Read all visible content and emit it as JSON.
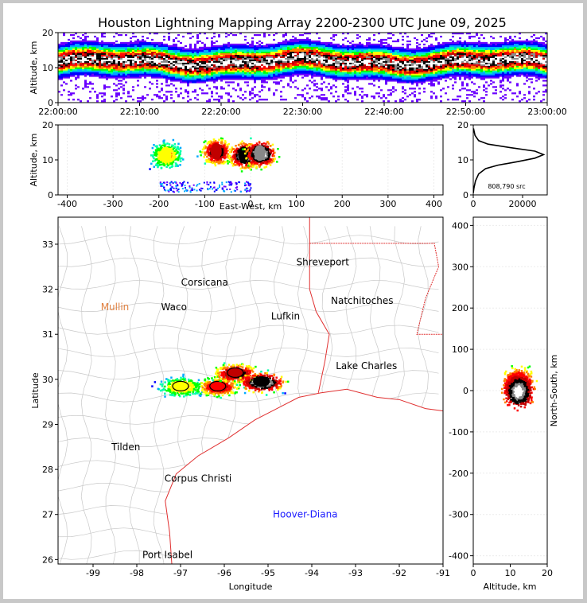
{
  "chart_data": {
    "type": "scatter",
    "title": "Houston Lightning Mapping Array 2200-2300 UTC June 09, 2025",
    "panels": {
      "time_altitude": {
        "ylabel": "Altitude, km",
        "ylim": [
          0,
          20
        ],
        "yticks": [
          "0",
          "10",
          "20"
        ],
        "xticks": [
          "22:00:00",
          "22:10:00",
          "22:20:00",
          "22:30:00",
          "22:40:00",
          "22:50:00",
          "23:00:00"
        ]
      },
      "east_west_altitude": {
        "xlabel": "East-West, km",
        "ylabel": "Altitude, km",
        "xlim": [
          -420,
          420
        ],
        "ylim": [
          0,
          20
        ],
        "xticks": [
          -400,
          -300,
          -200,
          -100,
          0,
          100,
          200,
          300,
          400
        ],
        "yticks": [
          0,
          10,
          20
        ],
        "cells": [
          {
            "ew": -185,
            "alt": 11.5,
            "intensity": 0.55
          },
          {
            "ew": -75,
            "alt": 12.5,
            "intensity": 0.85
          },
          {
            "ew": -15,
            "alt": 11.5,
            "intensity": 0.95
          },
          {
            "ew": 20,
            "alt": 12.0,
            "intensity": 1.0
          }
        ]
      },
      "altitude_histogram": {
        "xticks": [
          0,
          20000
        ],
        "yticks": [
          0,
          10,
          20
        ],
        "xlim": [
          0,
          30000
        ],
        "ylim": [
          0,
          20
        ],
        "source_count": "808,790 src",
        "profile": [
          {
            "alt": 0.5,
            "count": 0
          },
          {
            "alt": 2,
            "count": 300
          },
          {
            "alt": 4,
            "count": 900
          },
          {
            "alt": 6,
            "count": 2200
          },
          {
            "alt": 7.5,
            "count": 5000
          },
          {
            "alt": 8.5,
            "count": 10000
          },
          {
            "alt": 9.5,
            "count": 18000
          },
          {
            "alt": 10.5,
            "count": 25000
          },
          {
            "alt": 11.5,
            "count": 28500
          },
          {
            "alt": 12.5,
            "count": 25000
          },
          {
            "alt": 13.5,
            "count": 15000
          },
          {
            "alt": 14.5,
            "count": 6000
          },
          {
            "alt": 15.5,
            "count": 2200
          },
          {
            "alt": 17,
            "count": 700
          },
          {
            "alt": 19,
            "count": 100
          }
        ]
      },
      "plan_view": {
        "xlabel": "Longitude",
        "ylabel": "Latitude",
        "xlim": [
          -99.8,
          -91
        ],
        "ylim": [
          25.9,
          33.6
        ],
        "xticks": [
          -99,
          -98,
          -97,
          -96,
          -95,
          -94,
          -93,
          -92,
          -91
        ],
        "yticks": [
          26,
          27,
          28,
          29,
          30,
          31,
          32,
          33
        ],
        "places": [
          {
            "name": "Shreveport",
            "lon": -93.75,
            "lat": 32.6,
            "color": "#000000"
          },
          {
            "name": "Corsicana",
            "lon": -96.45,
            "lat": 32.15,
            "color": "#000000"
          },
          {
            "name": "Mullin",
            "lon": -98.5,
            "lat": 31.6,
            "color": "#e08040"
          },
          {
            "name": "Waco",
            "lon": -97.15,
            "lat": 31.6,
            "color": "#000000"
          },
          {
            "name": "Natchitoches",
            "lon": -92.85,
            "lat": 31.75,
            "color": "#000000"
          },
          {
            "name": "Lufkin",
            "lon": -94.6,
            "lat": 31.4,
            "color": "#000000"
          },
          {
            "name": "Lake Charles",
            "lon": -92.75,
            "lat": 30.3,
            "color": "#000000"
          },
          {
            "name": "Tilden",
            "lon": -98.25,
            "lat": 28.5,
            "color": "#000000"
          },
          {
            "name": "Corpus Christi",
            "lon": -96.6,
            "lat": 27.8,
            "color": "#000000"
          },
          {
            "name": "Hoover-Diana",
            "lon": -94.15,
            "lat": 27.0,
            "color": "#1a1aff"
          },
          {
            "name": "Port Isabel",
            "lon": -97.3,
            "lat": 26.1,
            "color": "#000000"
          }
        ],
        "cells": [
          {
            "lon": -97.0,
            "lat": 29.85,
            "intensity": 0.55
          },
          {
            "lon": -96.15,
            "lat": 29.85,
            "intensity": 0.75
          },
          {
            "lon": -95.75,
            "lat": 30.15,
            "intensity": 0.85
          },
          {
            "lon": -95.15,
            "lat": 29.95,
            "intensity": 1.0
          }
        ]
      },
      "north_south_altitude": {
        "xlabel": "Altitude, km",
        "ylabel": "North-South, km",
        "xlim": [
          0,
          20
        ],
        "ylim": [
          -420,
          420
        ],
        "xticks": [
          0,
          10,
          20
        ],
        "yticks": [
          -400,
          -300,
          -200,
          -100,
          0,
          100,
          200,
          300,
          400
        ]
      }
    },
    "colors": {
      "colormap": [
        "#6a00ff",
        "#0000ff",
        "#00aaff",
        "#00ffaa",
        "#00ff00",
        "#ffff00",
        "#ff8000",
        "#ff0000",
        "#c00000",
        "#000000",
        "#888888",
        "#ffffff"
      ],
      "map_lines": "#c8c8c8",
      "coast_and_border": "#e03030"
    }
  }
}
